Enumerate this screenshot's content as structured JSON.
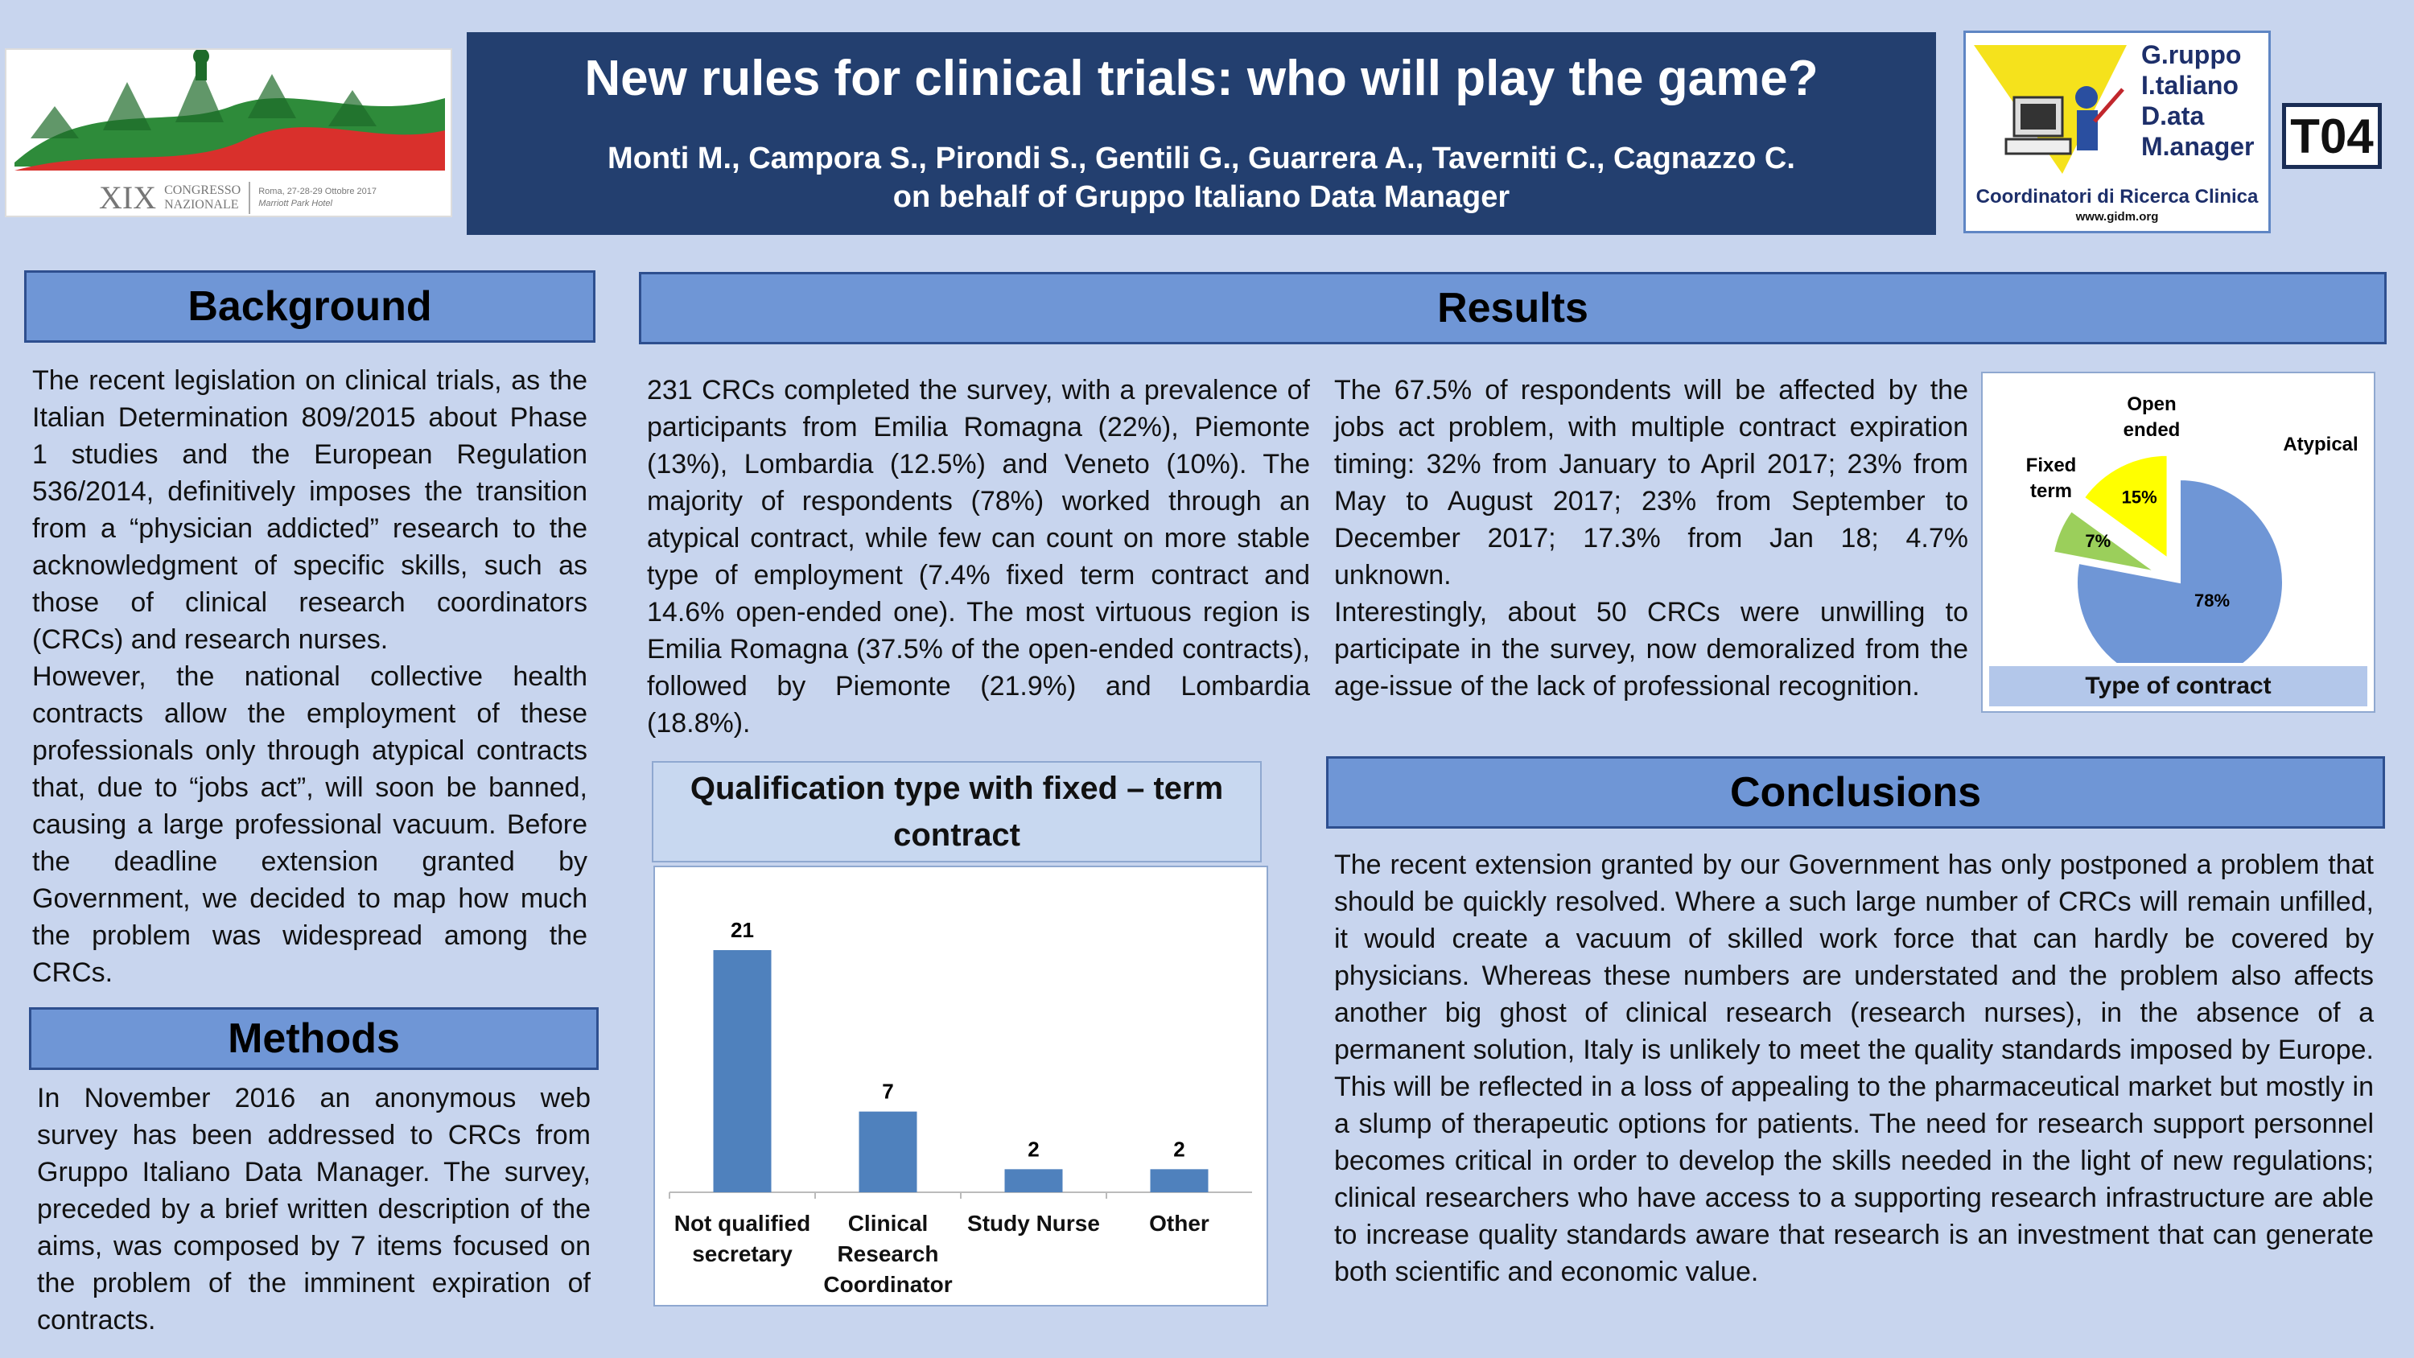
{
  "header": {
    "title": "New rules for clinical trials: who will play the game?",
    "authors": "Monti M., Campora S., Pirondi S., Gentili G., Guarrera A., Taverniti C., Cagnazzo C.",
    "affiliation": "on behalf of Gruppo Italiano Data Manager",
    "tag": "T04"
  },
  "logo_left": {
    "roman": "XIX",
    "line1": "CONGRESSO",
    "line2": "NAZIONALE",
    "city": "Roma, 27-28-29 Ottobre 2017",
    "venue": "Marriott Park Hotel"
  },
  "logo_right": {
    "l1": "G.ruppo",
    "l2": "I.taliano",
    "l3": "D.ata",
    "l4": "M.anager",
    "sub": "Coordinatori di Ricerca Clinica",
    "url": "www.gidm.org"
  },
  "background": {
    "heading": "Background",
    "p1": "The recent legislation on clinical trials, as the Italian Determination 809/2015 about Phase 1 studies and the European Regulation 536/2014, definitively imposes the transition from a “physician addicted” research to the acknowledgment of specific skills, such as those of clinical research coordinators (CRCs) and research nurses.",
    "p2": "However, the national collective health contracts allow the employment of these professionals only through atypical contracts that, due to “jobs act”, will soon be banned, causing a large professional vacuum. Before the deadline extension granted by Government, we decided to map how much the problem was widespread among the CRCs."
  },
  "methods": {
    "heading": "Methods",
    "p1": "In November 2016 an anonymous web survey has been addressed to CRCs from Gruppo Italiano Data Manager. The survey, preceded by a brief written description of the aims, was composed by 7 items focused on the problem of the imminent expiration of contracts."
  },
  "results": {
    "heading": "Results",
    "left_text": "231 CRCs completed the survey, with a prevalence of participants from Emilia Romagna (22%), Piemonte (13%), Lombardia (12.5%) and Veneto (10%). The majority of respondents (78%) worked through an atypical contract, while few can count on more stable type of employment (7.4% fixed term contract and 14.6% open-ended one). The most virtuous region is Emilia Romagna (37.5% of the open-ended contracts), followed by Piemonte (21.9%) and Lombardia (18.8%).",
    "right_p1": "The 67.5% of respondents will be affected by the jobs act problem, with multiple contract expiration timing: 32% from January to April 2017; 23% from May to August 2017; 23% from September to December 2017; 17.3% from Jan 18; 4.7% unknown.",
    "right_p2": "Interestingly, about 50 CRCs were unwilling to participate in the survey, now demoralized from the age-issue of the lack of professional recognition."
  },
  "conclusions": {
    "heading": "Conclusions",
    "text": "The recent extension granted by our Government has only postponed a problem that should be quickly resolved. Where a such large number of CRCs will remain unfilled, it would create a vacuum of skilled work force that can hardly be covered by physicians. Whereas these numbers are understated and the problem also affects another big ghost of clinical research (research nurses), in the absence of a permanent solution, Italy is unlikely to meet the quality standards imposed by Europe. This will be reflected in a loss of appealing to the pharmaceutical market but mostly in a slump of therapeutic options for patients. The need for research support personnel becomes critical in order to develop the skills needed in the light of new regulations; clinical researchers who have access to a supporting research infrastructure are able to increase quality standards aware that research is an investment that can generate both scientific and economic value."
  },
  "chart_data": [
    {
      "type": "bar",
      "title": "Qualification type with fixed – term contract",
      "categories": [
        "Not qualified secretary",
        "Clinical Research Coordinator",
        "Study Nurse",
        "Other"
      ],
      "values": [
        21,
        7,
        2,
        2
      ],
      "color": "#4f81bd",
      "ylim": [
        0,
        24
      ],
      "grid": false,
      "legend": "none"
    },
    {
      "type": "pie",
      "title": "Type of contract",
      "slices": [
        {
          "label": "Atypical",
          "value": 78,
          "text": "78%",
          "color": "#6f96d6"
        },
        {
          "label": "Fixed term",
          "value": 7,
          "text": "7%",
          "color": "#9bcf5b"
        },
        {
          "label": "Open ended",
          "value": 15,
          "text": "15%",
          "color": "#ffff00"
        }
      ]
    }
  ]
}
